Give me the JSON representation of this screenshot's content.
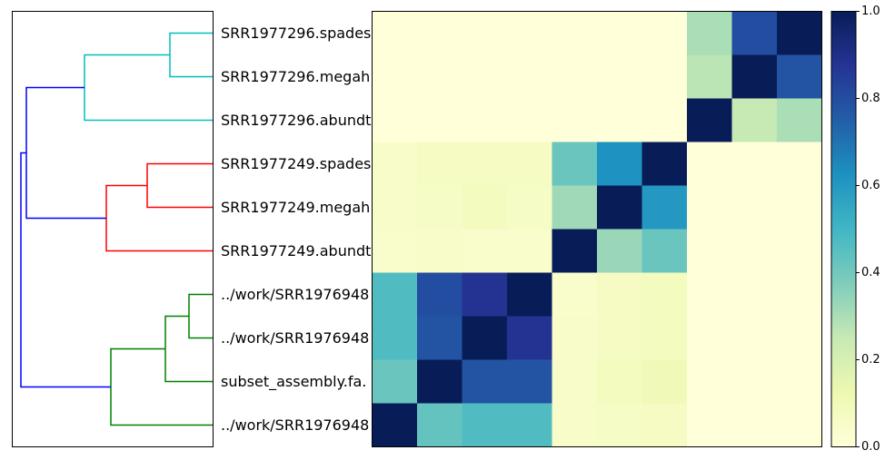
{
  "chart_data": {
    "type": "heatmap",
    "title": "",
    "row_labels": [
      "SRR1977296.spades",
      "SRR1977296.megah",
      "SRR1977296.abundt",
      "SRR1977249.spades",
      "SRR1977249.megah",
      "SRR1977249.abundt",
      "../work/SRR1976948",
      "../work/SRR1976948",
      "subset_assembly.fa.",
      "../work/SRR1976948"
    ],
    "matrix": [
      [
        0.0,
        0.0,
        0.0,
        0.0,
        0.0,
        0.0,
        0.0,
        0.3,
        0.8,
        1.0
      ],
      [
        0.0,
        0.0,
        0.0,
        0.0,
        0.0,
        0.0,
        0.0,
        0.27,
        1.0,
        0.78
      ],
      [
        0.0,
        0.0,
        0.0,
        0.0,
        0.0,
        0.0,
        0.0,
        1.0,
        0.25,
        0.3
      ],
      [
        0.05,
        0.07,
        0.07,
        0.07,
        0.42,
        0.62,
        1.0,
        0.0,
        0.0,
        0.0
      ],
      [
        0.05,
        0.06,
        0.08,
        0.06,
        0.32,
        1.0,
        0.6,
        0.0,
        0.0,
        0.0
      ],
      [
        0.04,
        0.05,
        0.04,
        0.04,
        1.0,
        0.33,
        0.42,
        0.0,
        0.0,
        0.0
      ],
      [
        0.47,
        0.8,
        0.88,
        1.0,
        0.04,
        0.07,
        0.08,
        0.0,
        0.0,
        0.0
      ],
      [
        0.47,
        0.78,
        1.0,
        0.88,
        0.05,
        0.07,
        0.08,
        0.0,
        0.0,
        0.0
      ],
      [
        0.42,
        1.0,
        0.78,
        0.78,
        0.05,
        0.08,
        0.1,
        0.0,
        0.0,
        0.0
      ],
      [
        1.0,
        0.43,
        0.47,
        0.47,
        0.05,
        0.06,
        0.07,
        0.0,
        0.0,
        0.0
      ]
    ],
    "colorbar": {
      "range": [
        0.0,
        1.0
      ],
      "ticks": [
        "0.0",
        "0.2",
        "0.4",
        "0.6",
        "0.8",
        "1.0"
      ],
      "colormap": "YlGnBu"
    },
    "dendrogram": {
      "orientation": "left",
      "cluster_colors": [
        "#00bfbf",
        "#ff0000",
        "#008000"
      ],
      "link_color": "#0000ff"
    }
  }
}
